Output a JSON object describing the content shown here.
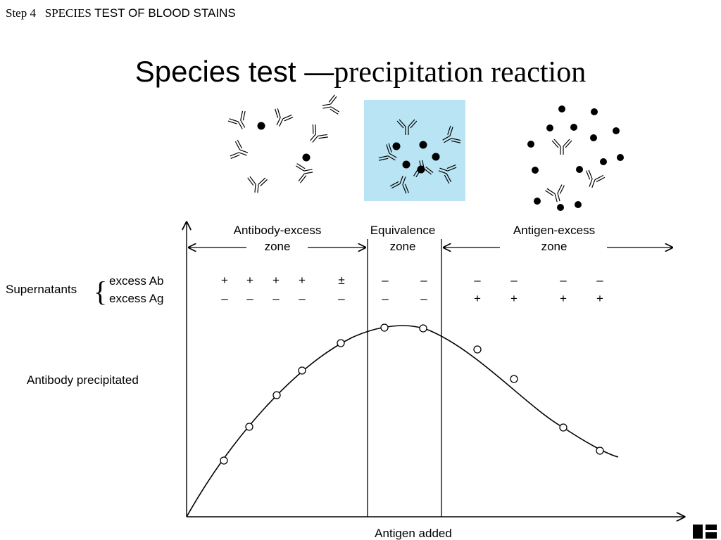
{
  "header": {
    "step": "Step 4",
    "section_serif": "SPECIES",
    "section_sans": "TEST OF BLOOD STAINS"
  },
  "title": {
    "main": "Species  test ",
    "dash": "—",
    "sub": "precipitation reaction"
  },
  "zones": {
    "antibody_excess": [
      "Antibody-excess",
      "zone"
    ],
    "equivalence": [
      "Equivalence",
      "zone"
    ],
    "antigen_excess": [
      "Antigen-excess",
      "zone"
    ]
  },
  "supernatants": {
    "label": "Supernatants",
    "row_ab": "excess Ab",
    "row_ag": "excess Ag",
    "ab_signs": [
      "+",
      "+",
      "+",
      "+",
      "±",
      "–",
      "–",
      "–",
      "–",
      "–",
      "–"
    ],
    "ag_signs": [
      "–",
      "–",
      "–",
      "–",
      "–",
      "–",
      "–",
      "+",
      "+",
      "+",
      "+"
    ]
  },
  "axes": {
    "y_label": "Antibody precipitated",
    "x_label": "Antigen added"
  },
  "colors": {
    "equivalence_panel": "#b9e4f4",
    "line": "#000000"
  },
  "icons": [
    "antibody-antigen-complex-icon",
    "logo-icon"
  ]
}
